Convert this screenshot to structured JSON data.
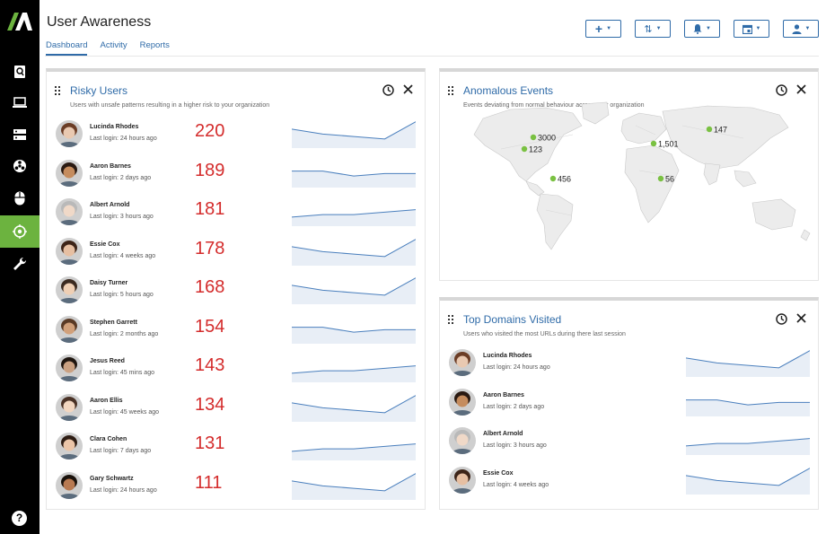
{
  "app": {
    "title": "User Awareness"
  },
  "tabs": [
    {
      "label": "Dashboard",
      "active": true
    },
    {
      "label": "Activity",
      "active": false
    },
    {
      "label": "Reports",
      "active": false
    }
  ],
  "toolbar": {
    "add_glyph": "+",
    "sort_glyph": "⇅",
    "caret": "▼"
  },
  "rail": {
    "help_glyph": "?"
  },
  "colors": {
    "accent": "#2f6ba8",
    "active_nav": "#6cb33f",
    "score": "#d42c2c",
    "map_dot": "#7ac142"
  },
  "risky_users": {
    "title": "Risky Users",
    "subtitle": "Users with unsafe patterns resulting in a higher risk to your organization",
    "rows": [
      {
        "name": "Lucinda Rhodes",
        "login": "Last login: 24 hours ago",
        "score": "220",
        "trend": [
          7,
          5,
          4,
          3,
          10
        ]
      },
      {
        "name": "Aaron Barnes",
        "login": "Last login: 2 days ago",
        "score": "189",
        "trend": [
          6,
          6,
          4,
          5,
          5
        ]
      },
      {
        "name": "Albert Arnold",
        "login": "Last login: 3 hours ago",
        "score": "181",
        "trend": [
          3,
          4,
          4,
          5,
          6
        ]
      },
      {
        "name": "Essie Cox",
        "login": "Last login: 4 weeks ago",
        "score": "178",
        "trend": [
          7,
          5,
          4,
          3,
          10
        ]
      },
      {
        "name": "Daisy Turner",
        "login": "Last login: 5 hours ago",
        "score": "168",
        "trend": [
          7,
          5,
          4,
          3,
          10
        ]
      },
      {
        "name": "Stephen Garrett",
        "login": "Last login: 2 months ago",
        "score": "154",
        "trend": [
          6,
          6,
          4,
          5,
          5
        ]
      },
      {
        "name": "Jesus Reed",
        "login": "Last login: 45 mins ago",
        "score": "143",
        "trend": [
          3,
          4,
          4,
          5,
          6
        ]
      },
      {
        "name": "Aaron Ellis",
        "login": "Last login: 45 weeks ago",
        "score": "134",
        "trend": [
          7,
          5,
          4,
          3,
          10
        ]
      },
      {
        "name": "Clara Cohen",
        "login": "Last login: 7 days ago",
        "score": "131",
        "trend": [
          3,
          4,
          4,
          5,
          6
        ]
      },
      {
        "name": "Gary Schwartz",
        "login": "Last login: 24 hours ago",
        "score": "111",
        "trend": [
          7,
          5,
          4,
          3,
          10
        ]
      }
    ]
  },
  "anomalous_events": {
    "title": "Anomalous Events",
    "subtitle": "Events deviating from normal behaviour across your organization",
    "markers": [
      {
        "label": "3000"
      },
      {
        "label": "123"
      },
      {
        "label": "456"
      },
      {
        "label": "1,501"
      },
      {
        "label": "147"
      },
      {
        "label": "56"
      }
    ]
  },
  "top_domains": {
    "title": "Top Domains Visited",
    "subtitle": "Users who visited the most URLs during there last session",
    "rows": [
      {
        "name": "Lucinda Rhodes",
        "login": "Last login: 24 hours ago",
        "trend": [
          7,
          5,
          4,
          3,
          10
        ]
      },
      {
        "name": "Aaron Barnes",
        "login": "Last login: 2 days ago",
        "trend": [
          6,
          6,
          4,
          5,
          5
        ]
      },
      {
        "name": "Albert Arnold",
        "login": "Last login: 3 hours ago",
        "trend": [
          3,
          4,
          4,
          5,
          6
        ]
      },
      {
        "name": "Essie Cox",
        "login": "Last login: 4 weeks ago",
        "trend": [
          7,
          5,
          4,
          3,
          10
        ]
      }
    ]
  }
}
